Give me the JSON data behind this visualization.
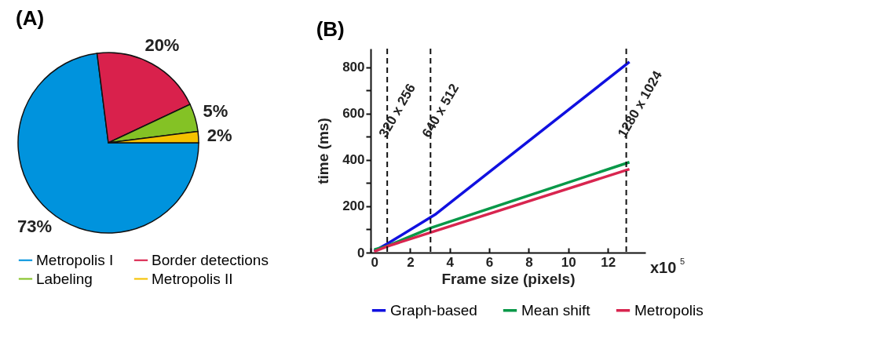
{
  "chart_data": [
    {
      "type": "pie",
      "title": "(A)",
      "categories": [
        "Metropolis I",
        "Border detections",
        "Labeling",
        "Metropolis II"
      ],
      "values": [
        73,
        20,
        5,
        2
      ],
      "colors": [
        "#0093dd",
        "#d9214c",
        "#84c225",
        "#f5c100"
      ],
      "value_labels": [
        "73%",
        "20%",
        "5%",
        "2%"
      ],
      "legend": "bottom"
    },
    {
      "type": "line",
      "title": "(B)",
      "xlabel": "Frame size (pixels)",
      "ylabel": "time (ms)",
      "xlim": [
        0,
        13.9
      ],
      "ylim": [
        0,
        880
      ],
      "xticks": [
        0,
        2,
        4,
        6,
        8,
        10,
        12
      ],
      "yticks": [
        0,
        {
          "value": 100,
          "label": null
        },
        200,
        {
          "value": 300,
          "label": null
        },
        400,
        {
          "value": 500,
          "label": null
        },
        600,
        {
          "value": 700,
          "label": null
        },
        800
      ],
      "grid": false,
      "legend": "bottom",
      "marker": "none",
      "line_style": "solid",
      "series": [
        {
          "name": "Graph-based",
          "color": "#1010e0",
          "x": [
            0.18,
            0.84,
            3.26,
            13.09
          ],
          "values": [
            7,
            38,
            164,
            823
          ]
        },
        {
          "name": "Mean shift",
          "color": "#089848",
          "x": [
            0.18,
            0.84,
            3.03,
            13.09
          ],
          "values": [
            13,
            28,
            106,
            390
          ]
        },
        {
          "name": "Metropolis",
          "color": "#d8254f",
          "x": [
            0.18,
            0.84,
            3.03,
            13.09
          ],
          "values": [
            5,
            27,
            87,
            360
          ]
        }
      ],
      "ref_lines": [
        {
          "axis": "x",
          "value": 0.84,
          "label": "320 x 256",
          "line_style": "dashed"
        },
        {
          "axis": "x",
          "value": 3.03,
          "label": "640 x 512",
          "line_style": "dashed"
        },
        {
          "axis": "x",
          "value": 12.93,
          "label": "1280 x 1024",
          "line_style": "dashed"
        }
      ],
      "annotations": [
        "x10$^{5}$"
      ]
    }
  ]
}
